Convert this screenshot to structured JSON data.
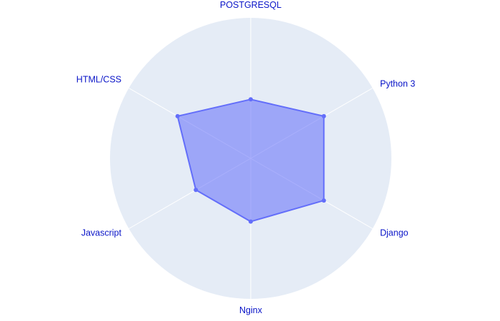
{
  "chart_data": {
    "type": "radar",
    "title": "",
    "categories": [
      "POSTGRESQL",
      "Python 3",
      "Django",
      "Nginx",
      "Javascript",
      "HTML/CSS"
    ],
    "series": [
      {
        "values": [
          42,
          60,
          60,
          45,
          45,
          60
        ]
      }
    ],
    "range": [
      0,
      100
    ],
    "grid": true,
    "legend": "none",
    "colors": {
      "background": "#e5ecf6",
      "grid": "#ffffff",
      "line": "#636efa",
      "fill": "rgba(99,110,250,0.55)",
      "label": "#0a15c8"
    }
  }
}
